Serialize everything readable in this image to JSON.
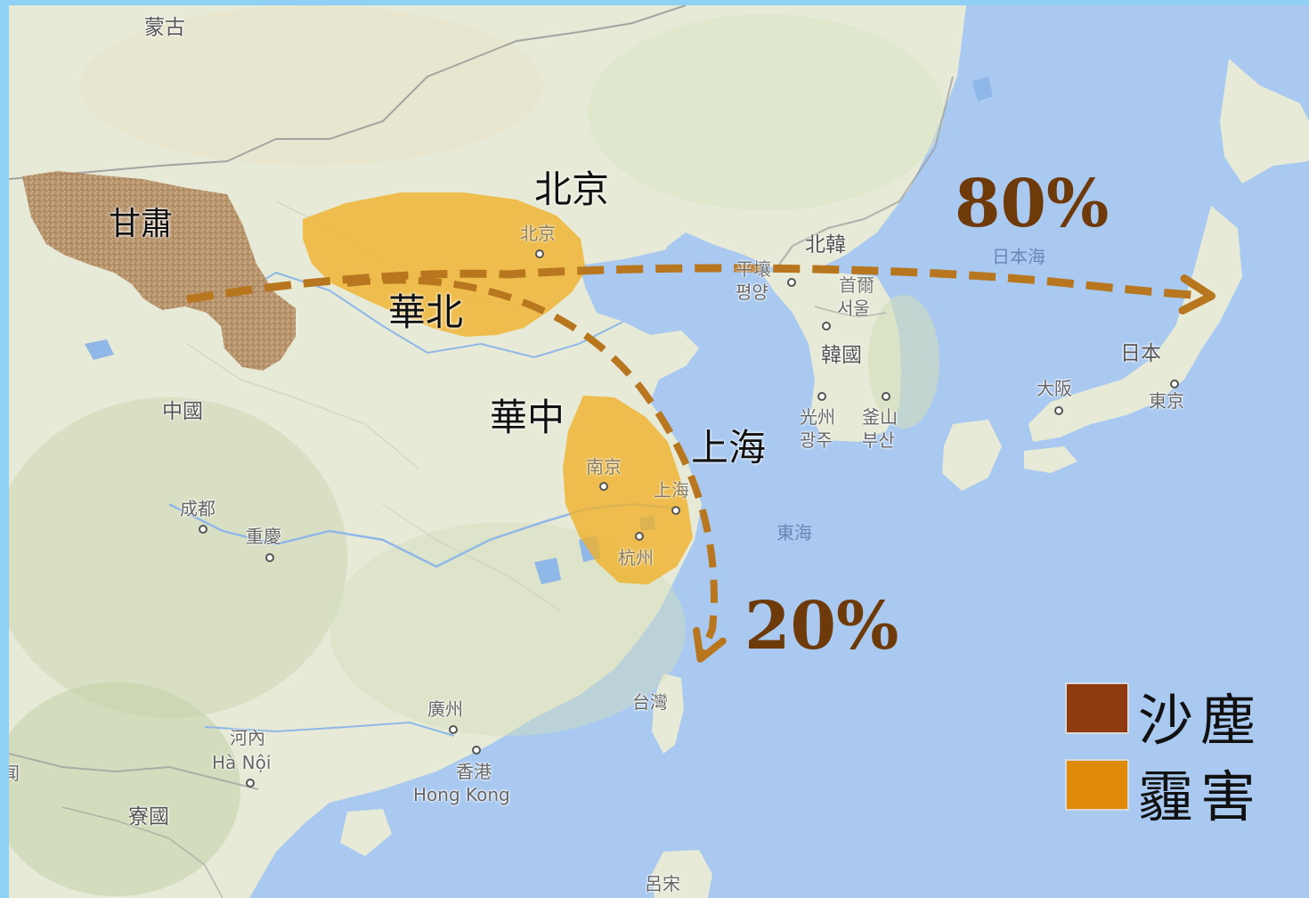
{
  "legend": {
    "items": [
      {
        "label": "沙塵",
        "color": "#8f3a10"
      },
      {
        "label": "霾害",
        "color": "#e08a0c"
      }
    ]
  },
  "flow": {
    "east_percent": "80%",
    "south_percent": "20%",
    "arrow_color": "#b8761e"
  },
  "regions": {
    "gansu": "甘肅",
    "beijing": "北京",
    "north_china": "華北",
    "central_china": "華中",
    "shanghai": "上海"
  },
  "basemap": {
    "mongolia": "蒙古",
    "china": "中國",
    "chengdu": "成都",
    "chongqing": "重慶",
    "beijing_small": "北京",
    "nanjing": "南京",
    "shanghai_small": "上海",
    "hangzhou": "杭州",
    "guangzhou": "廣州",
    "hong_kong_zh": "香港",
    "hong_kong_en": "Hong Kong",
    "hanoi_zh": "河內",
    "hanoi_en": "Hà Nội",
    "laos": "寮國",
    "taiwan": "台灣",
    "luzon": "呂宋",
    "north_korea": "北韓",
    "pyongyang_zh": "平壤",
    "pyongyang_ko": "평양",
    "seoul_zh": "首爾",
    "seoul_ko": "서울",
    "south_korea": "韓國",
    "gwangju_zh": "光州",
    "gwangju_ko": "광주",
    "busan_zh": "釜山",
    "busan_ko": "부산",
    "sea_of_japan": "日本海",
    "east_china_sea": "東海",
    "japan": "日本",
    "osaka": "大阪",
    "tokyo": "東京",
    "edge_partial": "闻"
  },
  "colors": {
    "ocean": "#a9c9f1",
    "land": "#e6ead6",
    "dust": "#b08860",
    "haze": "#f0b22a"
  }
}
